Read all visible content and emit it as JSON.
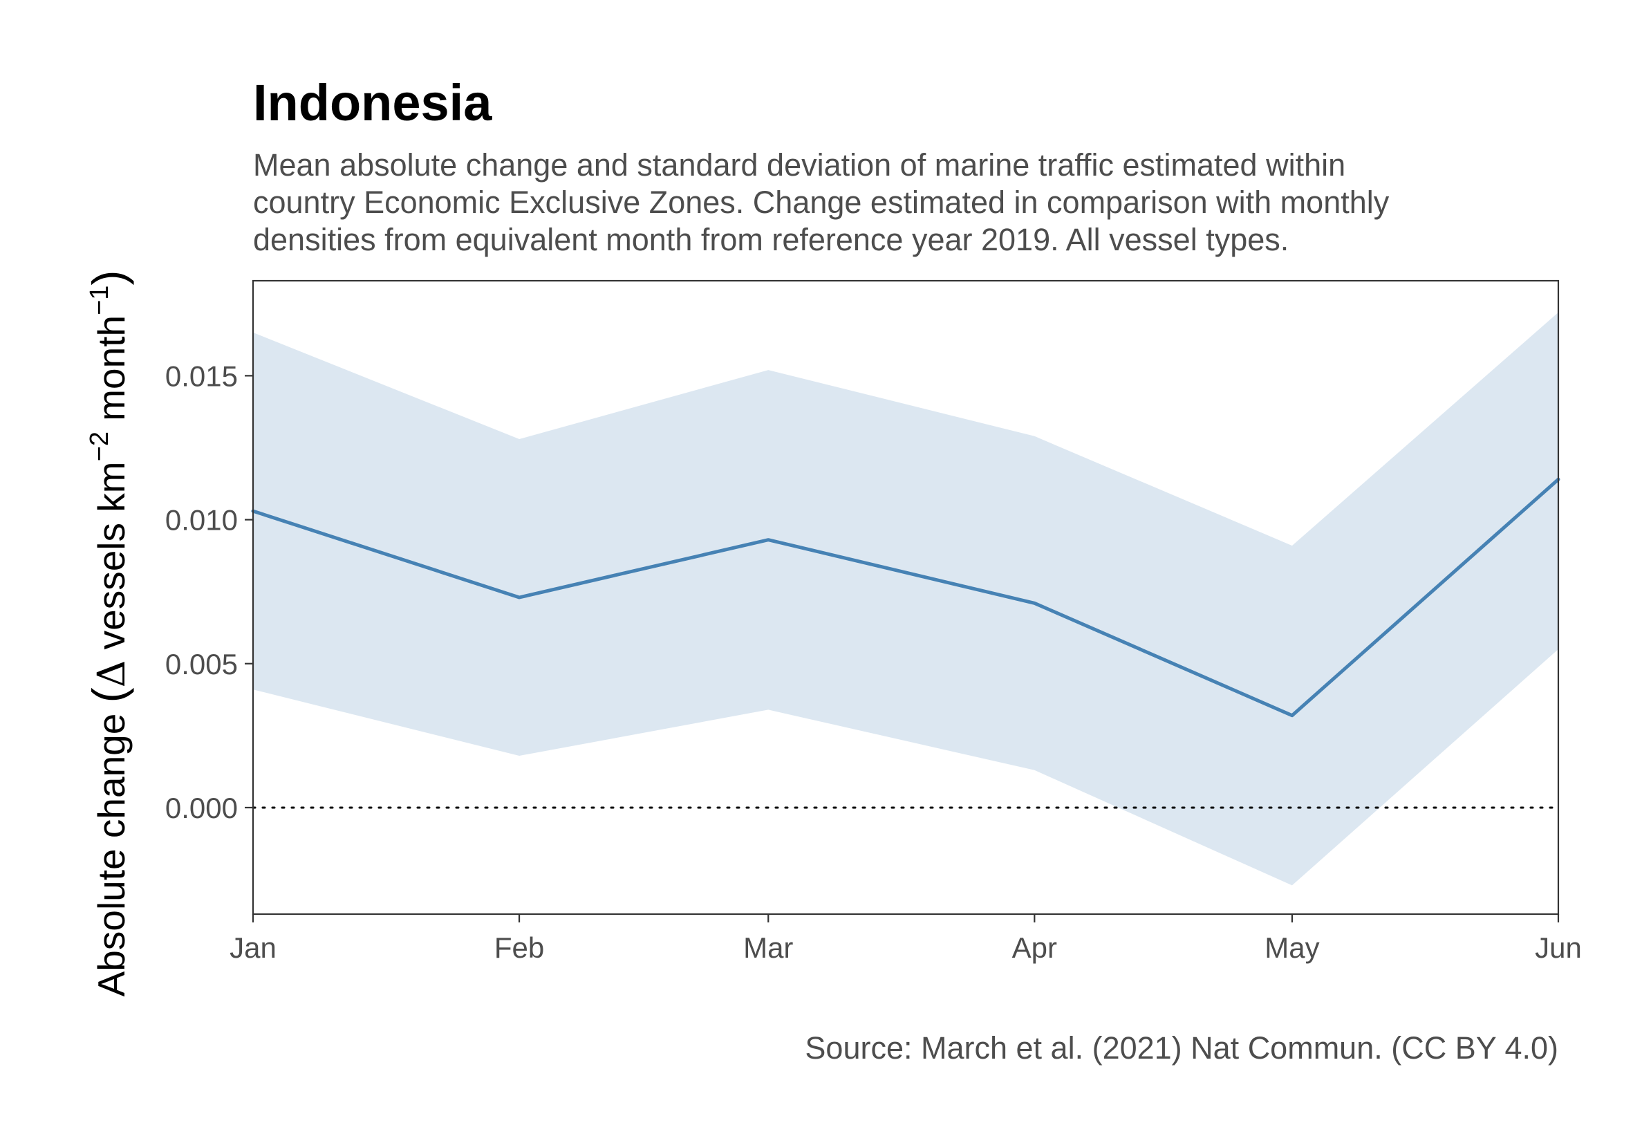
{
  "chart_data": {
    "type": "line",
    "title": "Indonesia",
    "subtitle_lines": [
      "Mean absolute change and standard deviation of marine traffic estimated within",
      "country Economic Exclusive Zones. Change estimated in comparison with monthly",
      "densities from equivalent month from reference year 2019. All vessel types."
    ],
    "ylabel": {
      "prefix": "Absolute change ",
      "open_paren": "(",
      "delta": "Δ",
      "middle": " vessels km",
      "sup1": "−2",
      "after_sup1": " month",
      "sup2": "−1",
      "close_paren": ")"
    },
    "xlabel": "",
    "caption": "Source: March et al. (2021) Nat Commun. (CC BY 4.0)",
    "categories": [
      "Jan",
      "Feb",
      "Mar",
      "Apr",
      "May",
      "Jun"
    ],
    "x_positions": [
      0,
      31,
      60,
      91,
      121,
      152
    ],
    "series": [
      {
        "values": [
          0.0103,
          0.0073,
          0.0093,
          0.0071,
          0.0032,
          0.0114
        ],
        "lower": [
          0.0041,
          0.0018,
          0.0034,
          0.0013,
          -0.0027,
          0.0055
        ],
        "upper": [
          0.0165,
          0.0128,
          0.0152,
          0.0129,
          0.0091,
          0.0172
        ],
        "line_color": "#4682b4",
        "ribbon_color": "#dce7f1"
      }
    ],
    "yticks": [
      0.0,
      0.005,
      0.01,
      0.015
    ],
    "ytick_labels": [
      "0.000",
      "0.005",
      "0.010",
      "0.015"
    ],
    "ylim": [
      -0.0037,
      0.0183
    ],
    "reference_line": {
      "y": 0.0,
      "style": "dotted"
    },
    "grid": false,
    "legend": "none"
  }
}
